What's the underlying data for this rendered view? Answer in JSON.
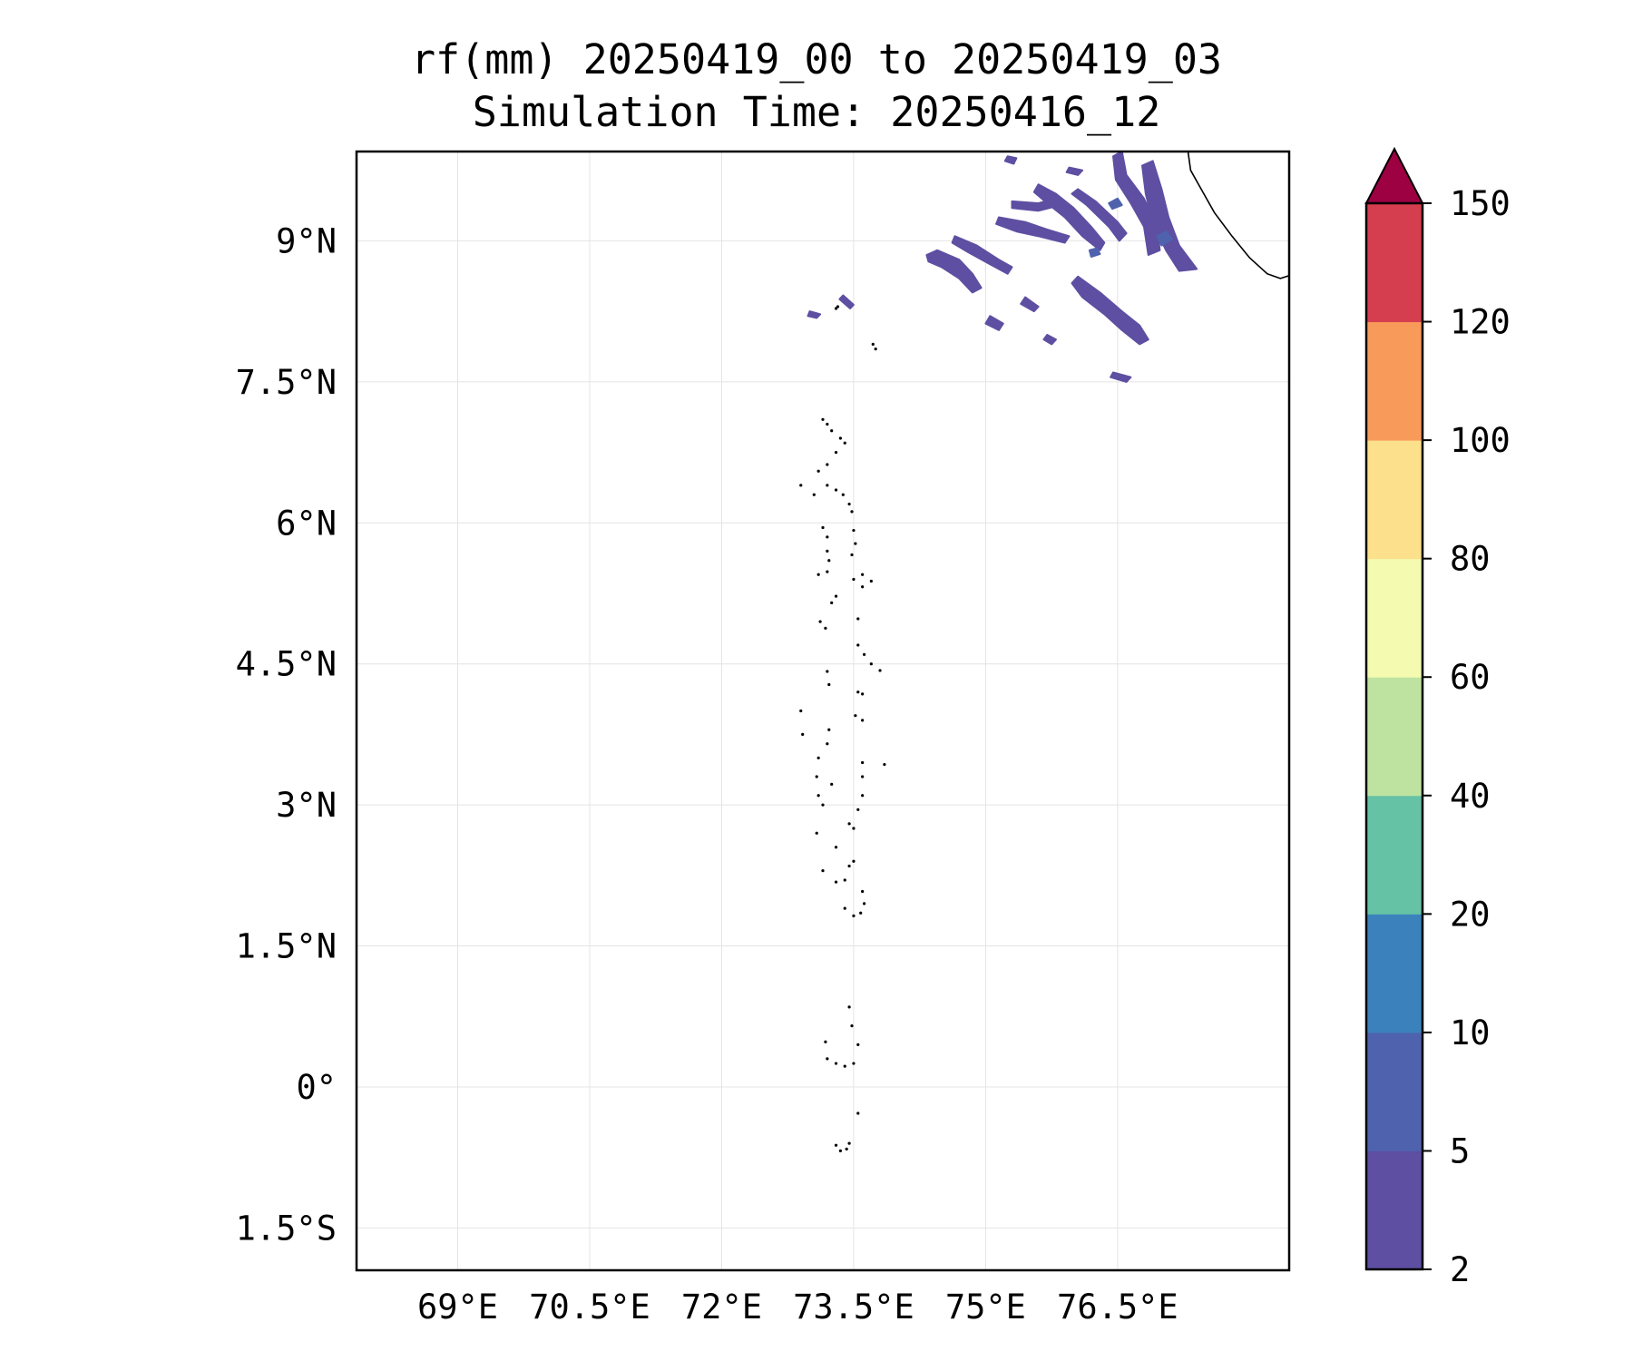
{
  "title": {
    "line1": "rf(mm) 20250419_00 to 20250419_03",
    "line2": "Simulation Time: 20250416_12"
  },
  "map": {
    "lon_range": [
      67.85,
      78.45
    ],
    "lat_range": [
      -1.95,
      9.95
    ],
    "x_ticks": [
      {
        "value": 69.0,
        "label": "69°E"
      },
      {
        "value": 70.5,
        "label": "70.5°E"
      },
      {
        "value": 72.0,
        "label": "72°E"
      },
      {
        "value": 73.5,
        "label": "73.5°E"
      },
      {
        "value": 75.0,
        "label": "75°E"
      },
      {
        "value": 76.5,
        "label": "76.5°E"
      }
    ],
    "y_ticks": [
      {
        "value": 9.0,
        "label": "9°N"
      },
      {
        "value": 7.5,
        "label": "7.5°N"
      },
      {
        "value": 6.0,
        "label": "6°N"
      },
      {
        "value": 4.5,
        "label": "4.5°N"
      },
      {
        "value": 3.0,
        "label": "3°N"
      },
      {
        "value": 1.5,
        "label": "1.5°N"
      },
      {
        "value": 0.0,
        "label": "0°"
      },
      {
        "value": -1.5,
        "label": "1.5°S"
      }
    ],
    "grid": true,
    "coastline": [
      [
        77.3,
        9.95
      ],
      [
        77.33,
        9.75
      ],
      [
        77.45,
        9.55
      ],
      [
        77.6,
        9.3
      ],
      [
        77.8,
        9.05
      ],
      [
        78.0,
        8.82
      ],
      [
        78.2,
        8.65
      ],
      [
        78.35,
        8.6
      ],
      [
        78.45,
        8.63
      ]
    ],
    "rain_color": "#5e4fa2",
    "rain_bands": [
      {
        "level": "2-5",
        "points": [
          [
            74.33,
            8.85
          ],
          [
            74.45,
            8.9
          ],
          [
            74.7,
            8.8
          ],
          [
            74.85,
            8.65
          ],
          [
            74.95,
            8.5
          ],
          [
            74.85,
            8.45
          ],
          [
            74.7,
            8.6
          ],
          [
            74.5,
            8.72
          ],
          [
            74.35,
            8.78
          ]
        ]
      },
      {
        "level": "2-5",
        "points": [
          [
            74.65,
            9.05
          ],
          [
            74.9,
            8.95
          ],
          [
            75.15,
            8.8
          ],
          [
            75.3,
            8.72
          ],
          [
            75.25,
            8.65
          ],
          [
            75.05,
            8.75
          ],
          [
            74.8,
            8.88
          ],
          [
            74.62,
            8.98
          ]
        ]
      },
      {
        "level": "2-5",
        "points": [
          [
            75.15,
            9.25
          ],
          [
            75.45,
            9.2
          ],
          [
            75.7,
            9.12
          ],
          [
            75.95,
            9.05
          ],
          [
            75.9,
            8.98
          ],
          [
            75.6,
            9.05
          ],
          [
            75.35,
            9.1
          ],
          [
            75.12,
            9.18
          ]
        ]
      },
      {
        "level": "2-5",
        "points": [
          [
            75.6,
            9.6
          ],
          [
            75.8,
            9.5
          ],
          [
            76.0,
            9.35
          ],
          [
            76.2,
            9.15
          ],
          [
            76.35,
            8.98
          ],
          [
            76.3,
            8.9
          ],
          [
            76.1,
            9.05
          ],
          [
            75.9,
            9.25
          ],
          [
            75.7,
            9.4
          ],
          [
            75.55,
            9.52
          ]
        ]
      },
      {
        "level": "2-5",
        "points": [
          [
            75.3,
            9.42
          ],
          [
            75.6,
            9.4
          ],
          [
            75.8,
            9.45
          ],
          [
            75.85,
            9.38
          ],
          [
            75.6,
            9.32
          ],
          [
            75.3,
            9.35
          ]
        ]
      },
      {
        "level": "2-5",
        "points": [
          [
            76.05,
            9.55
          ],
          [
            76.25,
            9.42
          ],
          [
            76.5,
            9.2
          ],
          [
            76.6,
            9.08
          ],
          [
            76.52,
            9.0
          ],
          [
            76.4,
            9.15
          ],
          [
            76.15,
            9.38
          ],
          [
            75.98,
            9.5
          ]
        ]
      },
      {
        "level": "2-5",
        "points": [
          [
            76.9,
            9.85
          ],
          [
            77.0,
            9.55
          ],
          [
            77.08,
            9.25
          ],
          [
            77.2,
            8.95
          ],
          [
            77.4,
            8.7
          ],
          [
            77.2,
            8.68
          ],
          [
            77.05,
            8.9
          ],
          [
            76.9,
            9.2
          ],
          [
            76.82,
            9.5
          ],
          [
            76.78,
            9.8
          ]
        ]
      },
      {
        "level": "2-5",
        "points": [
          [
            76.55,
            9.95
          ],
          [
            76.6,
            9.7
          ],
          [
            76.8,
            9.45
          ],
          [
            76.95,
            9.15
          ],
          [
            76.98,
            8.9
          ],
          [
            76.85,
            8.85
          ],
          [
            76.8,
            9.15
          ],
          [
            76.65,
            9.4
          ],
          [
            76.48,
            9.65
          ],
          [
            76.45,
            9.9
          ]
        ]
      },
      {
        "level": "2-5",
        "points": [
          [
            76.05,
            8.62
          ],
          [
            76.3,
            8.45
          ],
          [
            76.55,
            8.25
          ],
          [
            76.75,
            8.1
          ],
          [
            76.85,
            7.95
          ],
          [
            76.75,
            7.9
          ],
          [
            76.55,
            8.05
          ],
          [
            76.35,
            8.22
          ],
          [
            76.1,
            8.4
          ],
          [
            75.98,
            8.55
          ]
        ]
      },
      {
        "level": "2-5",
        "points": [
          [
            75.45,
            8.4
          ],
          [
            75.6,
            8.3
          ],
          [
            75.55,
            8.25
          ],
          [
            75.4,
            8.33
          ]
        ]
      },
      {
        "level": "2-5",
        "points": [
          [
            75.05,
            8.2
          ],
          [
            75.2,
            8.12
          ],
          [
            75.15,
            8.05
          ],
          [
            75.0,
            8.12
          ]
        ]
      },
      {
        "level": "2-5",
        "points": [
          [
            73.0,
            8.25
          ],
          [
            73.12,
            8.22
          ],
          [
            73.08,
            8.18
          ],
          [
            72.98,
            8.2
          ]
        ]
      },
      {
        "level": "2-5",
        "points": [
          [
            73.38,
            8.42
          ],
          [
            73.5,
            8.32
          ],
          [
            73.46,
            8.28
          ],
          [
            73.34,
            8.38
          ]
        ]
      },
      {
        "level": "2-5",
        "points": [
          [
            75.7,
            8.0
          ],
          [
            75.8,
            7.95
          ],
          [
            75.75,
            7.9
          ],
          [
            75.66,
            7.95
          ]
        ]
      },
      {
        "level": "2-5",
        "points": [
          [
            76.45,
            7.6
          ],
          [
            76.65,
            7.55
          ],
          [
            76.6,
            7.5
          ],
          [
            76.42,
            7.55
          ]
        ]
      },
      {
        "level": "2-5",
        "points": [
          [
            75.25,
            9.9
          ],
          [
            75.35,
            9.88
          ],
          [
            75.32,
            9.82
          ],
          [
            75.22,
            9.85
          ]
        ]
      },
      {
        "level": "2-5",
        "points": [
          [
            75.95,
            9.78
          ],
          [
            76.1,
            9.75
          ],
          [
            76.05,
            9.7
          ],
          [
            75.92,
            9.73
          ]
        ]
      },
      {
        "level": "5-10",
        "points": [
          [
            76.95,
            9.05
          ],
          [
            77.05,
            9.1
          ],
          [
            77.12,
            9.02
          ],
          [
            77.0,
            8.95
          ]
        ]
      },
      {
        "level": "5-10",
        "points": [
          [
            76.4,
            9.4
          ],
          [
            76.5,
            9.45
          ],
          [
            76.55,
            9.38
          ],
          [
            76.44,
            9.34
          ]
        ]
      },
      {
        "level": "5-10",
        "points": [
          [
            76.18,
            8.9
          ],
          [
            76.26,
            8.92
          ],
          [
            76.3,
            8.86
          ],
          [
            76.2,
            8.83
          ]
        ]
      }
    ],
    "maldives_dots": [
      [
        73.15,
        7.1
      ],
      [
        73.2,
        7.05
      ],
      [
        73.25,
        6.98
      ],
      [
        73.35,
        6.9
      ],
      [
        73.4,
        6.85
      ],
      [
        73.3,
        6.75
      ],
      [
        73.2,
        6.62
      ],
      [
        73.1,
        6.55
      ],
      [
        73.2,
        6.4
      ],
      [
        73.3,
        6.35
      ],
      [
        73.38,
        6.3
      ],
      [
        73.45,
        6.2
      ],
      [
        73.48,
        6.12
      ],
      [
        72.9,
        6.4
      ],
      [
        73.05,
        6.3
      ],
      [
        73.15,
        5.95
      ],
      [
        73.2,
        5.85
      ],
      [
        73.2,
        5.7
      ],
      [
        73.22,
        5.6
      ],
      [
        73.5,
        5.92
      ],
      [
        73.52,
        5.78
      ],
      [
        73.48,
        5.66
      ],
      [
        73.1,
        5.45
      ],
      [
        73.2,
        5.48
      ],
      [
        73.5,
        5.4
      ],
      [
        73.6,
        5.45
      ],
      [
        73.7,
        5.38
      ],
      [
        73.6,
        5.32
      ],
      [
        73.3,
        5.22
      ],
      [
        73.25,
        5.15
      ],
      [
        73.12,
        4.95
      ],
      [
        73.18,
        4.88
      ],
      [
        73.55,
        4.98
      ],
      [
        73.55,
        4.7
      ],
      [
        73.62,
        4.6
      ],
      [
        73.7,
        4.5
      ],
      [
        73.8,
        4.43
      ],
      [
        73.55,
        4.2
      ],
      [
        73.6,
        4.18
      ],
      [
        73.2,
        4.42
      ],
      [
        73.22,
        4.28
      ],
      [
        72.9,
        4.0
      ],
      [
        72.92,
        3.75
      ],
      [
        73.22,
        3.8
      ],
      [
        73.2,
        3.65
      ],
      [
        73.1,
        3.5
      ],
      [
        73.52,
        3.95
      ],
      [
        73.6,
        3.9
      ],
      [
        73.6,
        3.45
      ],
      [
        73.85,
        3.43
      ],
      [
        73.6,
        3.3
      ],
      [
        73.08,
        3.3
      ],
      [
        73.25,
        3.22
      ],
      [
        73.1,
        3.1
      ],
      [
        73.15,
        3.0
      ],
      [
        73.6,
        3.1
      ],
      [
        73.55,
        2.95
      ],
      [
        73.45,
        2.8
      ],
      [
        73.5,
        2.75
      ],
      [
        73.08,
        2.7
      ],
      [
        73.3,
        2.55
      ],
      [
        73.5,
        2.4
      ],
      [
        73.45,
        2.35
      ],
      [
        73.15,
        2.3
      ],
      [
        73.3,
        2.18
      ],
      [
        73.4,
        2.2
      ],
      [
        73.6,
        2.08
      ],
      [
        73.62,
        1.95
      ],
      [
        73.5,
        1.82
      ],
      [
        73.4,
        1.9
      ],
      [
        73.58,
        1.85
      ],
      [
        73.45,
        0.85
      ],
      [
        73.48,
        0.65
      ],
      [
        73.55,
        0.45
      ],
      [
        73.18,
        0.48
      ],
      [
        73.2,
        0.3
      ],
      [
        73.3,
        0.25
      ],
      [
        73.4,
        0.22
      ],
      [
        73.5,
        0.25
      ],
      [
        73.55,
        -0.28
      ],
      [
        73.3,
        -0.62
      ],
      [
        73.35,
        -0.68
      ],
      [
        73.42,
        -0.66
      ],
      [
        73.45,
        -0.6
      ],
      [
        73.3,
        8.28
      ],
      [
        73.32,
        8.3
      ],
      [
        73.72,
        7.9
      ],
      [
        73.75,
        7.85
      ]
    ]
  },
  "colorbar": {
    "levels": [
      "2",
      "5",
      "10",
      "20",
      "40",
      "60",
      "80",
      "100",
      "120",
      "150"
    ],
    "colors": [
      "#5e4fa2",
      "#4f62ad",
      "#3b82bd",
      "#66c2a5",
      "#bee3a0",
      "#f4fab0",
      "#fce08b",
      "#f89b5a",
      "#d53e4f"
    ],
    "extend_color": "#9e0142",
    "extend": "max"
  }
}
